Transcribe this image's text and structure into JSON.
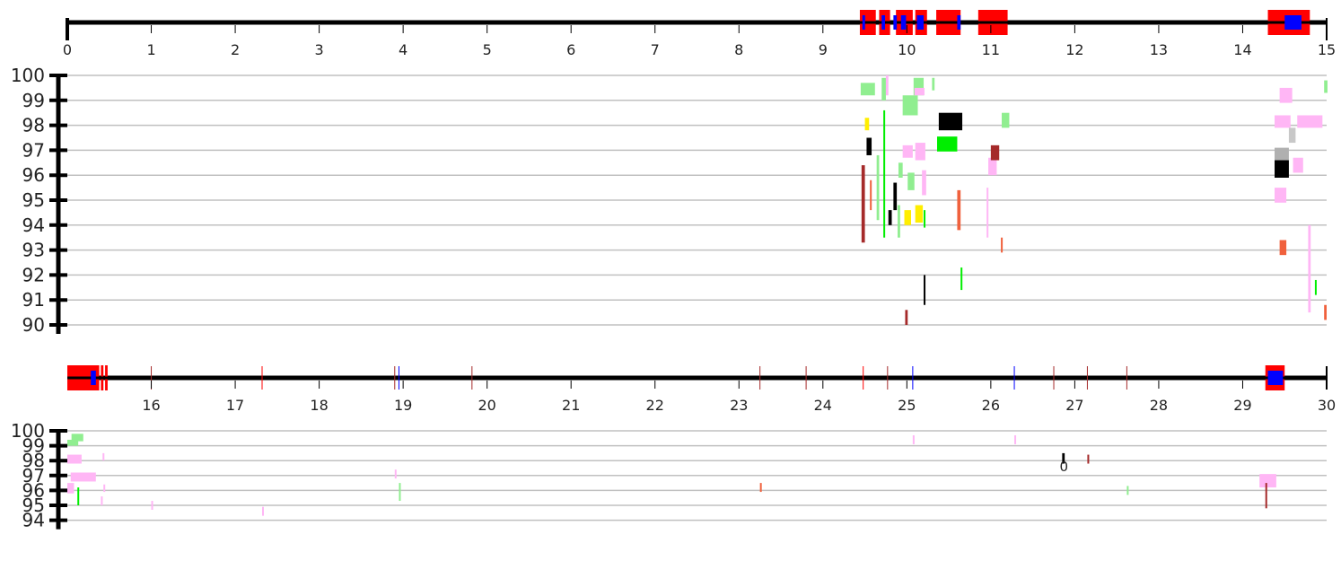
{
  "chart_data": [
    {
      "type": "scatter",
      "title": "",
      "xlabel": "",
      "ylabel": "",
      "xlim": [
        0,
        15
      ],
      "ylim": [
        90,
        100
      ],
      "x_ticks": [
        "0",
        "1",
        "2",
        "3",
        "4",
        "5",
        "6",
        "7",
        "8",
        "9",
        "10",
        "11",
        "12",
        "13",
        "14",
        "15"
      ],
      "y_ticks": [
        "90",
        "91",
        "92",
        "93",
        "94",
        "95",
        "96",
        "97",
        "98",
        "99",
        "100"
      ],
      "grid": true,
      "legend": "none",
      "track": {
        "red_regions": [
          [
            9.44,
            9.63
          ],
          [
            9.67,
            9.8
          ],
          [
            9.87,
            10.07
          ],
          [
            10.1,
            10.24
          ],
          [
            10.35,
            10.64
          ],
          [
            10.85,
            11.2
          ],
          [
            14.3,
            14.8
          ]
        ],
        "blue_regions": [
          [
            9.47,
            9.5
          ],
          [
            9.7,
            9.74
          ],
          [
            9.84,
            9.88
          ],
          [
            9.93,
            9.99
          ],
          [
            10.12,
            10.2
          ],
          [
            10.6,
            10.64
          ],
          [
            14.5,
            14.7
          ]
        ]
      },
      "points": [
        {
          "x": 9.45,
          "y0": 99.2,
          "y1": 99.7,
          "w": 0.17,
          "c": "lightgreen"
        },
        {
          "x": 9.7,
          "y0": 99.0,
          "y1": 99.9,
          "w": 0.05,
          "c": "lightgreen"
        },
        {
          "x": 9.75,
          "y0": 99.2,
          "y1": 100.0,
          "w": 0.03,
          "c": "pink"
        },
        {
          "x": 9.95,
          "y0": 98.4,
          "y1": 99.2,
          "w": 0.18,
          "c": "lightgreen"
        },
        {
          "x": 10.08,
          "y0": 99.2,
          "y1": 99.9,
          "w": 0.12,
          "c": "lightgreen"
        },
        {
          "x": 10.09,
          "y0": 99.2,
          "y1": 99.5,
          "w": 0.12,
          "c": "pink"
        },
        {
          "x": 10.3,
          "y0": 99.4,
          "y1": 99.9,
          "w": 0.03,
          "c": "lightgreen"
        },
        {
          "x": 10.38,
          "y0": 97.8,
          "y1": 98.5,
          "w": 0.28,
          "c": "black"
        },
        {
          "x": 10.36,
          "y0": 96.95,
          "y1": 97.55,
          "w": 0.24,
          "c": "lime"
        },
        {
          "x": 9.52,
          "y0": 96.8,
          "y1": 97.5,
          "w": 0.06,
          "c": "black"
        },
        {
          "x": 9.5,
          "y0": 97.8,
          "y1": 98.3,
          "w": 0.05,
          "c": "yellow"
        },
        {
          "x": 10.1,
          "y0": 96.6,
          "y1": 97.3,
          "w": 0.12,
          "c": "pink"
        },
        {
          "x": 9.95,
          "y0": 96.7,
          "y1": 97.2,
          "w": 0.12,
          "c": "pink"
        },
        {
          "x": 9.9,
          "y0": 95.9,
          "y1": 96.5,
          "w": 0.05,
          "c": "lightgreen"
        },
        {
          "x": 10.01,
          "y0": 95.4,
          "y1": 96.1,
          "w": 0.08,
          "c": "lightgreen"
        },
        {
          "x": 10.18,
          "y0": 95.2,
          "y1": 96.2,
          "w": 0.05,
          "c": "pink"
        },
        {
          "x": 9.46,
          "y0": 93.3,
          "y1": 96.4,
          "w": 0.04,
          "c": "brown"
        },
        {
          "x": 9.56,
          "y0": 94.6,
          "y1": 95.8,
          "w": 0.02,
          "c": "tomato"
        },
        {
          "x": 9.64,
          "y0": 94.2,
          "y1": 96.8,
          "w": 0.03,
          "c": "lightgreen"
        },
        {
          "x": 9.72,
          "y0": 93.5,
          "y1": 98.6,
          "w": 0.02,
          "c": "lime"
        },
        {
          "x": 9.78,
          "y0": 94.0,
          "y1": 94.6,
          "w": 0.04,
          "c": "black"
        },
        {
          "x": 9.84,
          "y0": 94.6,
          "y1": 95.7,
          "w": 0.04,
          "c": "black"
        },
        {
          "x": 9.89,
          "y0": 93.5,
          "y1": 94.8,
          "w": 0.03,
          "c": "lightgreen"
        },
        {
          "x": 9.97,
          "y0": 94.0,
          "y1": 94.6,
          "w": 0.08,
          "c": "yellow"
        },
        {
          "x": 10.1,
          "y0": 94.1,
          "y1": 94.8,
          "w": 0.09,
          "c": "yellow"
        },
        {
          "x": 10.2,
          "y0": 93.9,
          "y1": 94.6,
          "w": 0.02,
          "c": "lime"
        },
        {
          "x": 10.2,
          "y0": 90.8,
          "y1": 92.0,
          "w": 0.02,
          "c": "black"
        },
        {
          "x": 9.98,
          "y0": 90.0,
          "y1": 90.6,
          "w": 0.03,
          "c": "brown"
        },
        {
          "x": 10.6,
          "y0": 93.8,
          "y1": 95.4,
          "w": 0.04,
          "c": "tomato"
        },
        {
          "x": 10.64,
          "y0": 91.4,
          "y1": 92.3,
          "w": 0.02,
          "c": "lime"
        },
        {
          "x": 10.97,
          "y0": 96.0,
          "y1": 96.7,
          "w": 0.1,
          "c": "pink"
        },
        {
          "x": 11.0,
          "y0": 96.6,
          "y1": 97.2,
          "w": 0.1,
          "c": "brown"
        },
        {
          "x": 11.13,
          "y0": 97.9,
          "y1": 98.5,
          "w": 0.09,
          "c": "lightgreen"
        },
        {
          "x": 10.95,
          "y0": 93.5,
          "y1": 95.5,
          "w": 0.02,
          "c": "pink"
        },
        {
          "x": 11.12,
          "y0": 92.9,
          "y1": 93.5,
          "w": 0.02,
          "c": "tomato"
        },
        {
          "x": 14.38,
          "y0": 96.6,
          "y1": 97.1,
          "w": 0.17,
          "c": "darkgray"
        },
        {
          "x": 14.38,
          "y0": 95.9,
          "y1": 96.6,
          "w": 0.17,
          "c": "black"
        },
        {
          "x": 14.38,
          "y0": 94.9,
          "y1": 95.5,
          "w": 0.14,
          "c": "pink"
        },
        {
          "x": 14.38,
          "y0": 97.9,
          "y1": 98.4,
          "w": 0.19,
          "c": "pink"
        },
        {
          "x": 14.44,
          "y0": 98.9,
          "y1": 99.5,
          "w": 0.15,
          "c": "pink"
        },
        {
          "x": 14.65,
          "y0": 97.9,
          "y1": 98.4,
          "w": 0.3,
          "c": "pink"
        },
        {
          "x": 14.55,
          "y0": 97.3,
          "y1": 97.9,
          "w": 0.08,
          "c": "silver"
        },
        {
          "x": 14.6,
          "y0": 96.1,
          "y1": 96.7,
          "w": 0.12,
          "c": "pink"
        },
        {
          "x": 14.44,
          "y0": 92.8,
          "y1": 93.4,
          "w": 0.08,
          "c": "tomato"
        },
        {
          "x": 14.97,
          "y0": 99.3,
          "y1": 99.8,
          "w": 0.04,
          "c": "lightgreen"
        },
        {
          "x": 14.78,
          "y0": 90.5,
          "y1": 94.0,
          "w": 0.03,
          "c": "pink"
        },
        {
          "x": 14.86,
          "y0": 91.2,
          "y1": 91.8,
          "w": 0.02,
          "c": "lime"
        },
        {
          "x": 14.97,
          "y0": 90.2,
          "y1": 90.8,
          "w": 0.03,
          "c": "tomato"
        }
      ]
    },
    {
      "type": "scatter",
      "title": "",
      "xlabel": "",
      "ylabel": "",
      "xlim": [
        15,
        30
      ],
      "ylim": [
        94,
        100
      ],
      "x_ticks": [
        "16",
        "17",
        "18",
        "19",
        "20",
        "21",
        "22",
        "23",
        "24",
        "25",
        "26",
        "27",
        "28",
        "29",
        "30"
      ],
      "y_ticks": [
        "94",
        "95",
        "96",
        "97",
        "98",
        "99",
        "100"
      ],
      "grid": true,
      "legend": "none",
      "annotation": "0",
      "track": {
        "red_regions": [
          [
            15.0,
            15.38
          ],
          [
            15.4,
            15.43
          ],
          [
            15.45,
            15.48
          ],
          [
            29.27,
            29.5
          ]
        ],
        "blue_regions": [
          [
            15.28,
            15.34
          ],
          [
            29.3,
            29.48
          ]
        ],
        "tick_marks": [
          [
            16.0,
            "brown"
          ],
          [
            17.32,
            "red"
          ],
          [
            18.9,
            "brown"
          ],
          [
            18.95,
            "blue"
          ],
          [
            19.82,
            "brown"
          ],
          [
            23.25,
            "brown"
          ],
          [
            23.8,
            "brown"
          ],
          [
            24.48,
            "red"
          ],
          [
            24.77,
            "brown"
          ],
          [
            25.07,
            "blue"
          ],
          [
            26.28,
            "blue"
          ],
          [
            26.75,
            "brown"
          ],
          [
            27.15,
            "brown"
          ],
          [
            27.62,
            "brown"
          ]
        ]
      },
      "points": [
        {
          "x": 15.05,
          "y0": 99.3,
          "y1": 99.8,
          "w": 0.14,
          "c": "lightgreen"
        },
        {
          "x": 15.0,
          "y0": 99.0,
          "y1": 99.4,
          "w": 0.13,
          "c": "lightgreen"
        },
        {
          "x": 15.0,
          "y0": 97.8,
          "y1": 98.4,
          "w": 0.17,
          "c": "pink"
        },
        {
          "x": 15.04,
          "y0": 96.6,
          "y1": 97.2,
          "w": 0.3,
          "c": "pink"
        },
        {
          "x": 15.0,
          "y0": 95.8,
          "y1": 96.5,
          "w": 0.08,
          "c": "pink"
        },
        {
          "x": 15.12,
          "y0": 95.0,
          "y1": 96.2,
          "w": 0.02,
          "c": "lime"
        },
        {
          "x": 15.4,
          "y0": 95.0,
          "y1": 95.6,
          "w": 0.02,
          "c": "pink"
        },
        {
          "x": 15.42,
          "y0": 98.0,
          "y1": 98.5,
          "w": 0.02,
          "c": "pink"
        },
        {
          "x": 15.43,
          "y0": 95.9,
          "y1": 96.4,
          "w": 0.02,
          "c": "pink"
        },
        {
          "x": 16.0,
          "y0": 94.7,
          "y1": 95.3,
          "w": 0.02,
          "c": "pink"
        },
        {
          "x": 17.32,
          "y0": 94.3,
          "y1": 94.9,
          "w": 0.02,
          "c": "pink"
        },
        {
          "x": 18.9,
          "y0": 96.8,
          "y1": 97.4,
          "w": 0.02,
          "c": "pink"
        },
        {
          "x": 18.95,
          "y0": 95.3,
          "y1": 96.5,
          "w": 0.02,
          "c": "lightgreen"
        },
        {
          "x": 23.25,
          "y0": 95.9,
          "y1": 96.5,
          "w": 0.02,
          "c": "tomato"
        },
        {
          "x": 25.07,
          "y0": 99.1,
          "y1": 99.7,
          "w": 0.02,
          "c": "pink"
        },
        {
          "x": 26.28,
          "y0": 99.1,
          "y1": 99.7,
          "w": 0.02,
          "c": "pink"
        },
        {
          "x": 26.85,
          "y0": 97.8,
          "y1": 98.5,
          "w": 0.03,
          "c": "black"
        },
        {
          "x": 27.15,
          "y0": 97.8,
          "y1": 98.4,
          "w": 0.02,
          "c": "brown"
        },
        {
          "x": 27.62,
          "y0": 95.7,
          "y1": 96.3,
          "w": 0.02,
          "c": "lightgreen"
        },
        {
          "x": 29.2,
          "y0": 96.2,
          "y1": 97.1,
          "w": 0.2,
          "c": "pink"
        },
        {
          "x": 29.27,
          "y0": 94.8,
          "y1": 96.5,
          "w": 0.02,
          "c": "brown"
        }
      ]
    }
  ],
  "colors": {
    "axis": "#000000",
    "grid": "#c0c0c0",
    "red": "#ff0000",
    "blue": "#0000ff",
    "lightgreen": "#90ee90",
    "lime": "#00ee00",
    "pink": "#ffb6f5",
    "black": "#000000",
    "brown": "#a52a2a",
    "tomato": "#f0613d",
    "yellow": "#ffee00",
    "darkgray": "#b0b0b0",
    "silver": "#c8c8c8"
  }
}
